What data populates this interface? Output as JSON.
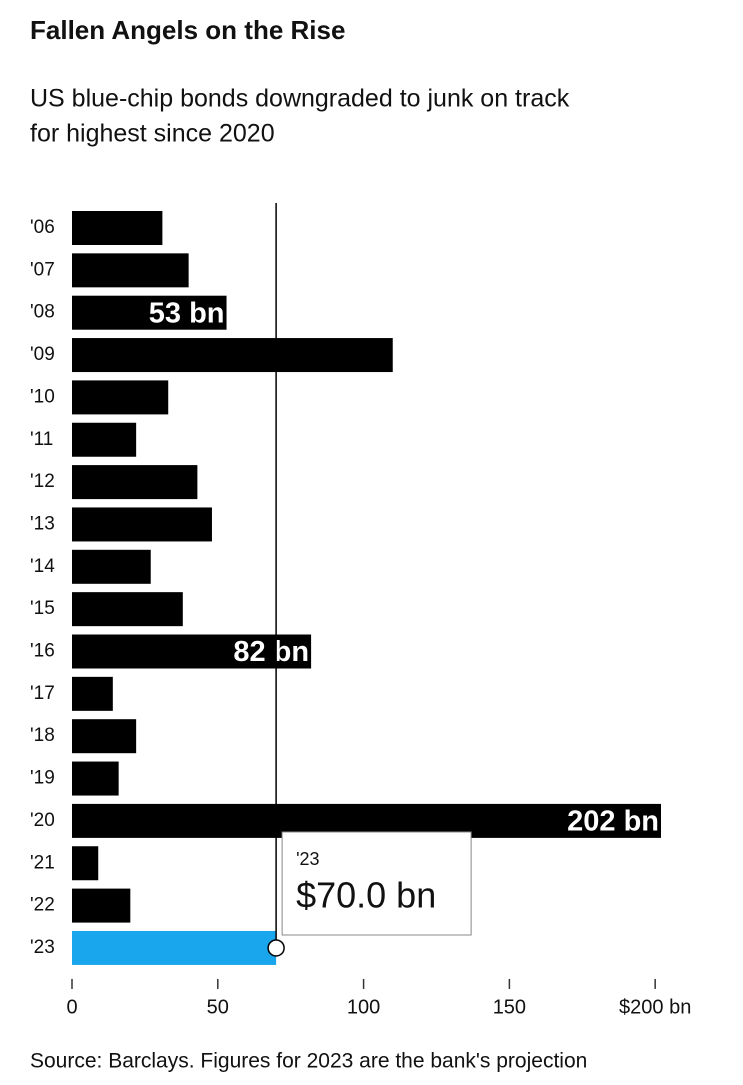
{
  "chart_data": {
    "type": "bar",
    "orientation": "horizontal",
    "title": "Fallen Angels on the Rise",
    "subtitle": [
      "US blue-chip bonds downgraded to junk on track",
      "for highest since 2020"
    ],
    "categories": [
      "'06",
      "'07",
      "'08",
      "'09",
      "'10",
      "'11",
      "'12",
      "'13",
      "'14",
      "'15",
      "'16",
      "'17",
      "'18",
      "'19",
      "'20",
      "'21",
      "'22",
      "'23"
    ],
    "values": [
      31,
      40,
      53,
      110,
      33,
      22,
      43,
      48,
      27,
      38,
      82,
      14,
      22,
      16,
      202,
      9,
      20,
      70
    ],
    "value_labels": [
      null,
      null,
      "53 bn",
      null,
      null,
      null,
      null,
      null,
      null,
      null,
      "82 bn",
      null,
      null,
      null,
      "202 bn",
      null,
      null,
      null
    ],
    "colors": [
      "#000000",
      "#000000",
      "#000000",
      "#000000",
      "#000000",
      "#000000",
      "#000000",
      "#000000",
      "#000000",
      "#000000",
      "#000000",
      "#000000",
      "#000000",
      "#000000",
      "#000000",
      "#000000",
      "#000000",
      "#1aa6ec"
    ],
    "xlim": [
      0,
      202
    ],
    "xticks": [
      0,
      50,
      100,
      150,
      {
        "value": 200,
        "label": "$200 bn"
      }
    ],
    "tooltip": {
      "index": 17,
      "title": "'23",
      "label": "$70.0 bn"
    },
    "source": "Source: Barclays. Figures for 2023 are the bank's projection"
  }
}
